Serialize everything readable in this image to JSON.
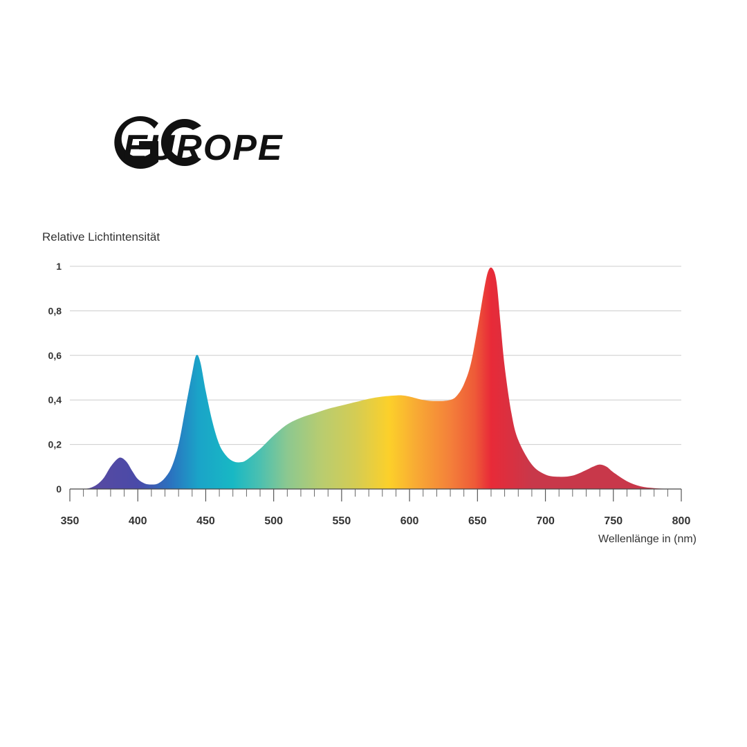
{
  "brand": {
    "logo_text": "EUROPE",
    "logo_mark": "GC",
    "logo_color": "#111111"
  },
  "chart_data": {
    "type": "area",
    "ylabel": "Relative Lichtintensität",
    "xlabel": "Wellenlänge in (nm)",
    "xlim": [
      350,
      800
    ],
    "ylim": [
      0,
      1
    ],
    "x_ticks": [
      350,
      400,
      450,
      500,
      550,
      600,
      650,
      700,
      750,
      800
    ],
    "x_tick_labels": [
      "350",
      "400",
      "450",
      "500",
      "550",
      "600",
      "650",
      "700",
      "750",
      "800"
    ],
    "y_ticks": [
      0,
      0.2,
      0.4,
      0.6,
      0.8,
      1
    ],
    "y_tick_labels": [
      "0",
      "0,2",
      "0,4",
      "0,6",
      "0,8",
      "1"
    ],
    "grid": true,
    "series": [
      {
        "x": [
          360,
          365,
          370,
          375,
          380,
          385,
          388,
          392,
          396,
          400,
          405,
          410,
          415,
          420,
          425,
          430,
          435,
          440,
          443,
          446,
          450,
          455,
          460,
          465,
          470,
          475,
          480,
          490,
          500,
          510,
          520,
          530,
          540,
          550,
          560,
          570,
          580,
          590,
          595,
          600,
          610,
          620,
          630,
          635,
          640,
          645,
          650,
          655,
          658,
          661,
          664,
          667,
          670,
          675,
          680,
          690,
          700,
          710,
          720,
          730,
          735,
          740,
          745,
          750,
          760,
          770,
          780,
          790,
          800
        ],
        "y": [
          0,
          0.005,
          0.02,
          0.05,
          0.1,
          0.135,
          0.14,
          0.12,
          0.08,
          0.045,
          0.025,
          0.02,
          0.025,
          0.05,
          0.1,
          0.2,
          0.36,
          0.52,
          0.6,
          0.57,
          0.44,
          0.3,
          0.2,
          0.15,
          0.125,
          0.12,
          0.13,
          0.18,
          0.24,
          0.29,
          0.32,
          0.34,
          0.36,
          0.375,
          0.39,
          0.405,
          0.415,
          0.42,
          0.42,
          0.415,
          0.4,
          0.395,
          0.4,
          0.42,
          0.47,
          0.56,
          0.72,
          0.9,
          0.98,
          0.99,
          0.93,
          0.74,
          0.55,
          0.34,
          0.22,
          0.11,
          0.065,
          0.055,
          0.06,
          0.085,
          0.1,
          0.11,
          0.1,
          0.075,
          0.035,
          0.012,
          0.004,
          0.001,
          0
        ]
      }
    ],
    "spectrum_colors": [
      {
        "nm": 360,
        "color": "#5a4aa0"
      },
      {
        "nm": 400,
        "color": "#4a4aa8"
      },
      {
        "nm": 425,
        "color": "#2a74c0"
      },
      {
        "nm": 445,
        "color": "#1aa4c8"
      },
      {
        "nm": 470,
        "color": "#18b8c4"
      },
      {
        "nm": 490,
        "color": "#4cc0b0"
      },
      {
        "nm": 510,
        "color": "#8cc890"
      },
      {
        "nm": 535,
        "color": "#b8cc70"
      },
      {
        "nm": 560,
        "color": "#d4cc54"
      },
      {
        "nm": 585,
        "color": "#fcd02a"
      },
      {
        "nm": 605,
        "color": "#f8aa34"
      },
      {
        "nm": 630,
        "color": "#f4803a"
      },
      {
        "nm": 648,
        "color": "#ee5a38"
      },
      {
        "nm": 660,
        "color": "#e82a38"
      },
      {
        "nm": 690,
        "color": "#c8384a"
      },
      {
        "nm": 760,
        "color": "#c8384a"
      }
    ]
  }
}
